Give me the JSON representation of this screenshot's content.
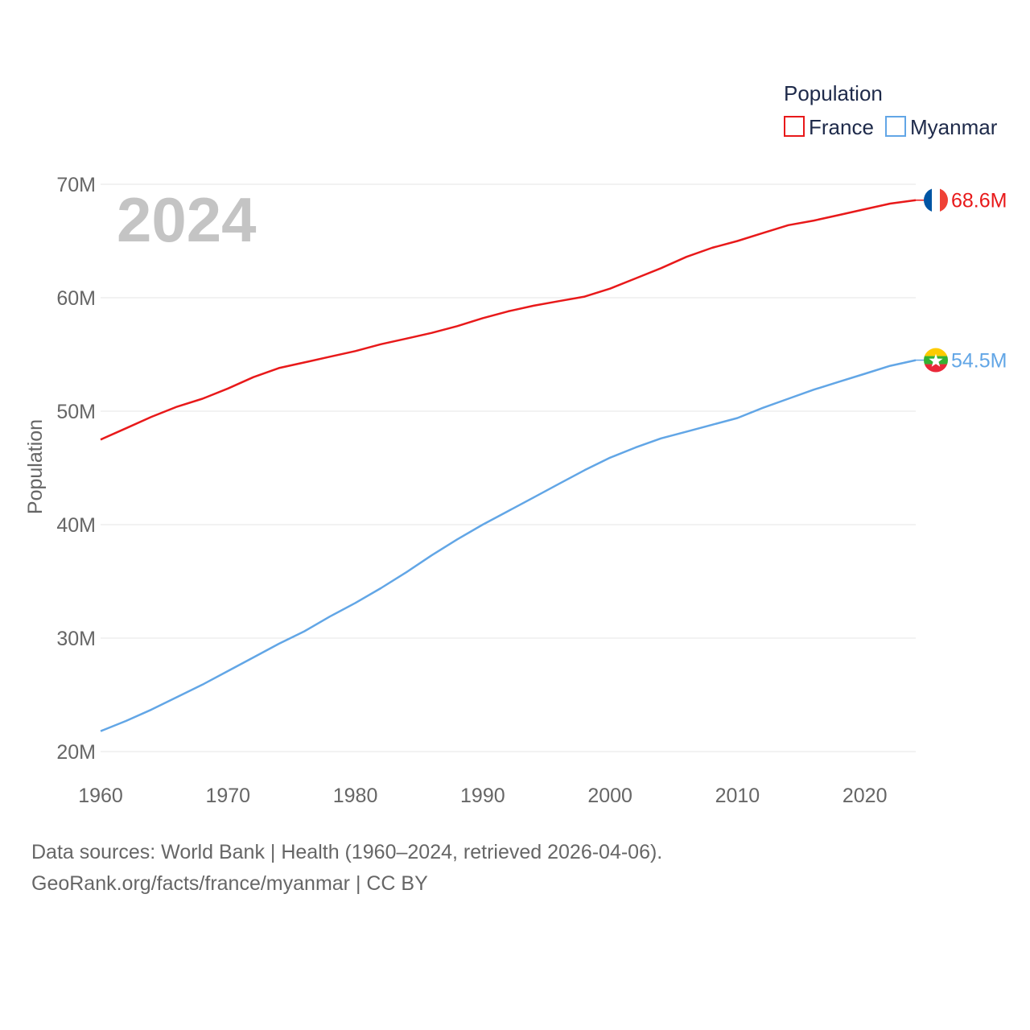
{
  "chart_data": {
    "type": "line",
    "year_label": "2024",
    "ylabel": "Population",
    "xlabel": "",
    "xlim": [
      1960,
      2024
    ],
    "ylim": [
      20000000,
      70000000
    ],
    "x_ticks": [
      1960,
      1970,
      1980,
      1990,
      2000,
      2010,
      2020
    ],
    "y_ticks": [
      {
        "value": 20000000,
        "label": "20M"
      },
      {
        "value": 30000000,
        "label": "30M"
      },
      {
        "value": 40000000,
        "label": "40M"
      },
      {
        "value": 50000000,
        "label": "50M"
      },
      {
        "value": 60000000,
        "label": "60M"
      },
      {
        "value": 70000000,
        "label": "70M"
      }
    ],
    "legend": {
      "title": "Population",
      "position": "top-right"
    },
    "series": [
      {
        "name": "France",
        "color": "#e8191a",
        "end_label": "68.6M",
        "flag": "france-flag",
        "points": [
          [
            1960,
            47.5
          ],
          [
            1962,
            48.5
          ],
          [
            1964,
            49.5
          ],
          [
            1966,
            50.4
          ],
          [
            1968,
            51.1
          ],
          [
            1970,
            52.0
          ],
          [
            1972,
            53.0
          ],
          [
            1974,
            53.8
          ],
          [
            1976,
            54.3
          ],
          [
            1978,
            54.8
          ],
          [
            1980,
            55.3
          ],
          [
            1982,
            55.9
          ],
          [
            1984,
            56.4
          ],
          [
            1986,
            56.9
          ],
          [
            1988,
            57.5
          ],
          [
            1990,
            58.2
          ],
          [
            1992,
            58.8
          ],
          [
            1994,
            59.3
          ],
          [
            1996,
            59.7
          ],
          [
            1998,
            60.1
          ],
          [
            2000,
            60.8
          ],
          [
            2002,
            61.7
          ],
          [
            2004,
            62.6
          ],
          [
            2006,
            63.6
          ],
          [
            2008,
            64.4
          ],
          [
            2010,
            65.0
          ],
          [
            2012,
            65.7
          ],
          [
            2014,
            66.4
          ],
          [
            2016,
            66.8
          ],
          [
            2018,
            67.3
          ],
          [
            2020,
            67.8
          ],
          [
            2022,
            68.3
          ],
          [
            2024,
            68.6
          ]
        ]
      },
      {
        "name": "Myanmar",
        "color": "#62a6e6",
        "end_label": "54.5M",
        "flag": "myanmar-flag",
        "points": [
          [
            1960,
            21.8
          ],
          [
            1962,
            22.7
          ],
          [
            1964,
            23.7
          ],
          [
            1966,
            24.8
          ],
          [
            1968,
            25.9
          ],
          [
            1970,
            27.1
          ],
          [
            1972,
            28.3
          ],
          [
            1974,
            29.5
          ],
          [
            1976,
            30.6
          ],
          [
            1978,
            31.9
          ],
          [
            1980,
            33.1
          ],
          [
            1982,
            34.4
          ],
          [
            1984,
            35.8
          ],
          [
            1986,
            37.3
          ],
          [
            1988,
            38.7
          ],
          [
            1990,
            40.0
          ],
          [
            1992,
            41.2
          ],
          [
            1994,
            42.4
          ],
          [
            1996,
            43.6
          ],
          [
            1998,
            44.8
          ],
          [
            2000,
            45.9
          ],
          [
            2002,
            46.8
          ],
          [
            2004,
            47.6
          ],
          [
            2006,
            48.2
          ],
          [
            2008,
            48.8
          ],
          [
            2010,
            49.4
          ],
          [
            2012,
            50.3
          ],
          [
            2014,
            51.1
          ],
          [
            2016,
            51.9
          ],
          [
            2018,
            52.6
          ],
          [
            2020,
            53.3
          ],
          [
            2022,
            54.0
          ],
          [
            2024,
            54.5
          ]
        ]
      }
    ]
  },
  "footer": {
    "sources": "Data sources: World Bank | Health (1960–2024, retrieved 2026-04-06).",
    "attribution": "GeoRank.org/facts/france/myanmar | CC BY"
  }
}
